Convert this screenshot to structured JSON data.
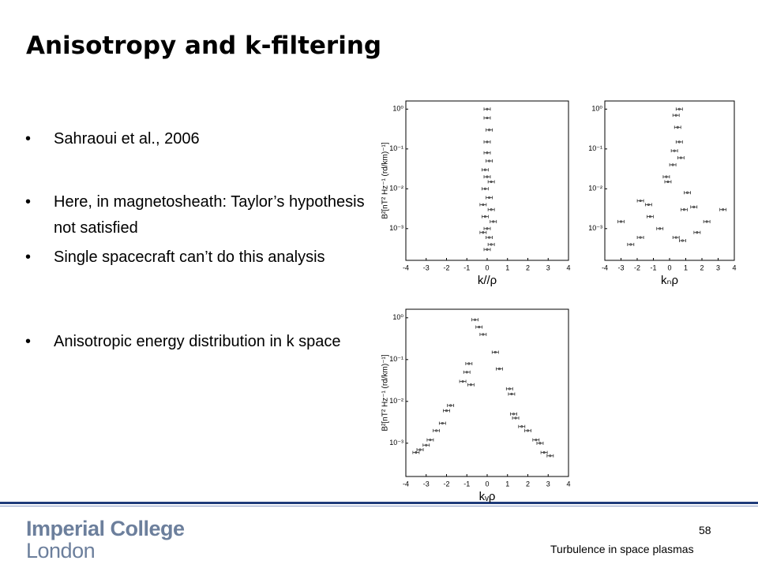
{
  "slide": {
    "title": "Anisotropy and k-filtering",
    "bullets": [
      "Sahraoui et al., 2006",
      "Here, in magnetosheath: Taylor’s hypothesis not satisfied",
      "Single spacecraft can’t do this analysis",
      "Anisotropic energy distribution in k space"
    ],
    "logo": [
      "Imperial College",
      "London"
    ],
    "page_number": "58",
    "footer": "Turbulence in space plasmas"
  },
  "chart_data": [
    {
      "type": "scatter",
      "x_label": "k//ρ",
      "y_label": "B²[nT² Hz⁻¹ (rd/km)⁻¹]",
      "log_y": true,
      "color": "#333333",
      "xlim": [
        -4,
        4
      ],
      "xticks": [
        -4,
        -3,
        -2,
        -1,
        0,
        1,
        2,
        3,
        4
      ],
      "ylim": [
        0.00016,
        1.6
      ],
      "yticks": [
        {
          "value": 1,
          "label": "10⁰"
        },
        {
          "value": 0.1,
          "label": "10⁻¹"
        },
        {
          "value": 0.01,
          "label": "10⁻²"
        },
        {
          "value": 0.001,
          "label": "10⁻³"
        }
      ],
      "x": [
        0,
        0,
        0.1,
        0,
        0,
        0.1,
        -0.1,
        0,
        0.2,
        -0.1,
        0.1,
        -0.2,
        0.2,
        -0.1,
        0.3,
        0,
        -0.2,
        0.1,
        0.2,
        0
      ],
      "values": [
        1,
        0.6,
        0.3,
        0.15,
        0.08,
        0.05,
        0.03,
        0.02,
        0.015,
        0.01,
        0.006,
        0.004,
        0.003,
        0.002,
        0.0015,
        0.001,
        0.0008,
        0.0006,
        0.0004,
        0.0003
      ]
    },
    {
      "type": "scatter",
      "x_label": "kₙρ",
      "y_label": null,
      "log_y": true,
      "color": "#333333",
      "xlim": [
        -4,
        4
      ],
      "xticks": [
        -4,
        -3,
        -2,
        -1,
        0,
        1,
        2,
        3,
        4
      ],
      "ylim": [
        0.00016,
        1.6
      ],
      "yticks": [
        {
          "value": 1,
          "label": "10⁰"
        },
        {
          "value": 0.1,
          "label": "10⁻¹"
        },
        {
          "value": 0.01,
          "label": "10⁻²"
        },
        {
          "value": 0.001,
          "label": "10⁻³"
        }
      ],
      "x": [
        0.6,
        0.4,
        0.5,
        0.6,
        0.3,
        0.7,
        0.2,
        -0.2,
        -0.1,
        1.1,
        -1.8,
        -1.3,
        0.9,
        1.5,
        3.3,
        -1.2,
        -3,
        2.3,
        -0.6,
        1.7,
        -1.8,
        0.4,
        0.8,
        -2.4
      ],
      "values": [
        1,
        0.7,
        0.35,
        0.15,
        0.09,
        0.06,
        0.04,
        0.02,
        0.015,
        0.008,
        0.005,
        0.004,
        0.003,
        0.0035,
        0.003,
        0.002,
        0.0015,
        0.0015,
        0.001,
        0.0008,
        0.0006,
        0.0006,
        0.0005,
        0.0004
      ]
    },
    {
      "type": "scatter",
      "x_label": "kᵥρ",
      "y_label": "B²[nT² Hz⁻¹ (rd/km)⁻¹]",
      "log_y": true,
      "color": "#333333",
      "xlim": [
        -4,
        4
      ],
      "xticks": [
        -4,
        -3,
        -2,
        -1,
        0,
        1,
        2,
        3,
        4
      ],
      "ylim": [
        0.00016,
        1.6
      ],
      "yticks": [
        {
          "value": 1,
          "label": "10⁰"
        },
        {
          "value": 0.1,
          "label": "10⁻¹"
        },
        {
          "value": 0.01,
          "label": "10⁻²"
        },
        {
          "value": 0.001,
          "label": "10⁻³"
        }
      ],
      "x": [
        -0.6,
        -0.4,
        -0.2,
        0.4,
        -0.9,
        -1,
        0.6,
        -1.2,
        -0.8,
        1.1,
        1.2,
        -1.8,
        -2,
        1.3,
        1.4,
        -2.2,
        -2.5,
        1.7,
        2,
        -2.8,
        -3,
        2.4,
        2.6,
        -3.3,
        -3.5,
        2.8,
        3.1
      ],
      "values": [
        0.9,
        0.6,
        0.4,
        0.15,
        0.08,
        0.05,
        0.06,
        0.03,
        0.025,
        0.02,
        0.015,
        0.008,
        0.006,
        0.005,
        0.004,
        0.003,
        0.002,
        0.0025,
        0.002,
        0.0012,
        0.0009,
        0.0012,
        0.001,
        0.0007,
        0.0006,
        0.0006,
        0.0005
      ]
    }
  ]
}
